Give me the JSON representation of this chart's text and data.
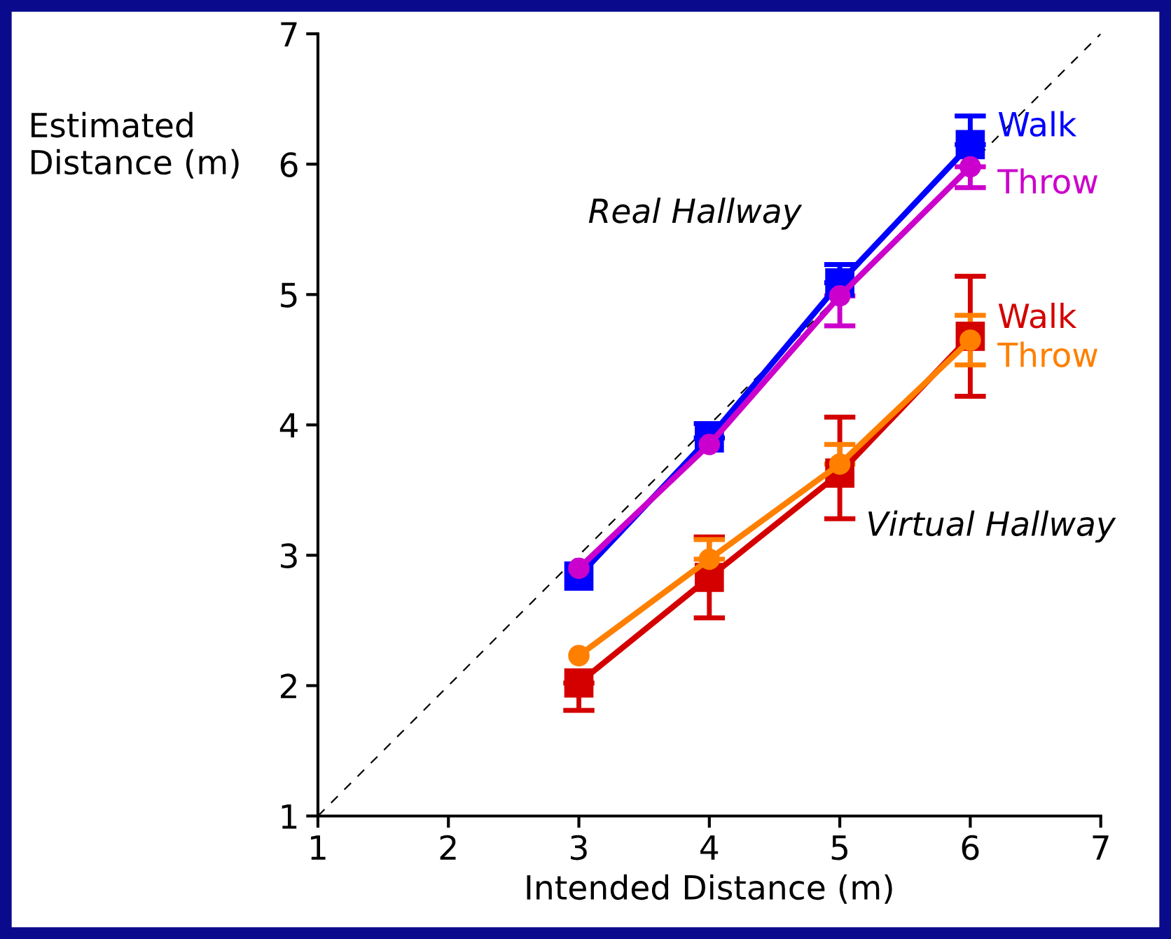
{
  "chart_data": {
    "type": "line",
    "xlabel": "Intended Distance (m)",
    "ylabel": "Estimated\nDistance (m)",
    "xlim": [
      1,
      7
    ],
    "xticks": [
      1,
      2,
      3,
      4,
      5,
      6,
      7
    ],
    "ylim": [
      1,
      7
    ],
    "yticks": [
      1,
      2,
      3,
      4,
      5,
      6,
      7
    ],
    "grid": false,
    "legend": false,
    "annotations": [
      "Real Hallway",
      "Virtual Hallway"
    ],
    "series": [
      {
        "type": "line",
        "x": [
          1,
          7
        ],
        "values": [
          1,
          7
        ],
        "color": "#000000",
        "line_style": "dashed",
        "marker": "none"
      },
      {
        "name": "Walk",
        "x": [
          3,
          4,
          5,
          6
        ],
        "values": [
          2.84,
          3.9,
          5.09,
          6.15
        ],
        "color": "#0000ff",
        "marker": "square",
        "errors": [
          null,
          [
            3.9,
            4.01
          ],
          [
            5.09,
            5.23
          ],
          [
            6.15,
            6.37
          ]
        ]
      },
      {
        "name": "Throw",
        "x": [
          3,
          4,
          5,
          6
        ],
        "values": [
          2.9,
          3.85,
          4.99,
          5.98
        ],
        "color": "#cc00cc",
        "marker": "circle",
        "errors": [
          null,
          null,
          [
            4.76,
            4.99
          ],
          [
            5.82,
            5.98
          ]
        ]
      },
      {
        "name": "Walk",
        "x": [
          3,
          4,
          5,
          6
        ],
        "values": [
          2.02,
          2.83,
          3.63,
          4.68
        ],
        "color": "#d40000",
        "marker": "square",
        "errors": [
          [
            1.81,
            2.02
          ],
          [
            2.52,
            3.14
          ],
          [
            3.28,
            4.06
          ],
          [
            4.22,
            5.14
          ]
        ]
      },
      {
        "name": "Throw",
        "x": [
          3,
          4,
          5,
          6
        ],
        "values": [
          2.23,
          2.97,
          3.7,
          4.65
        ],
        "color": "#ff8000",
        "marker": "circle",
        "errors": [
          null,
          [
            2.97,
            3.12
          ],
          [
            3.7,
            3.85
          ],
          [
            4.46,
            4.84
          ]
        ]
      }
    ]
  }
}
